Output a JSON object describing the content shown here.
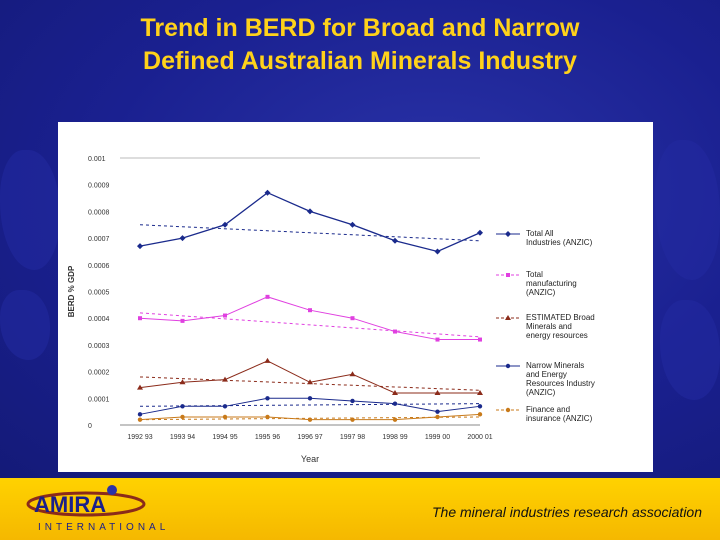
{
  "slide": {
    "title_line1": "Trend in BERD for Broad and Narrow",
    "title_line2": "Defined Australian Minerals Industry"
  },
  "footer": {
    "tagline": "The mineral industries research association",
    "logo_text": "AMIRA",
    "logo_subtext": "INTERNATIONAL"
  },
  "chart_data": {
    "type": "line",
    "ylabel": "BERD % GDP",
    "xlabel": "Year",
    "ylim": [
      0,
      0.001
    ],
    "yticks": [
      "0.001",
      "0.0009",
      "0.0008",
      "0.0007",
      "0.0006",
      "0.0005",
      "0.0004",
      "0.0003",
      "0.0002",
      "0.0001",
      "0"
    ],
    "ytick_values": [
      0.001,
      0.0009,
      0.0008,
      0.0007,
      0.0006,
      0.0005,
      0.0004,
      0.0003,
      0.0002,
      0.0001,
      0
    ],
    "categories": [
      "1992 93",
      "1993 94",
      "1994 95",
      "1995 96",
      "1996 97",
      "1997 98",
      "1998 99",
      "1999 00",
      "2000 01"
    ],
    "series": [
      {
        "name": "Total All Industries (ANZIC)",
        "color": "#1a2a8c",
        "marker": "diamond",
        "values": [
          0.00067,
          0.0007,
          0.00075,
          0.00087,
          0.0008,
          0.00075,
          0.00069,
          0.00065,
          0.00072
        ],
        "trend": [
          0.00075,
          0.00069
        ]
      },
      {
        "name": "Total manufacturing (ANZIC)",
        "color": "#e040e0",
        "marker": "square",
        "values": [
          0.0004,
          0.00039,
          0.00041,
          0.00048,
          0.00043,
          0.0004,
          0.00035,
          0.00032,
          0.00032
        ],
        "trend": [
          0.00042,
          0.00033
        ]
      },
      {
        "name": "ESTIMATED Broad Minerals and energy resources",
        "color": "#8b2b1a",
        "marker": "triangle",
        "values": [
          0.00014,
          0.00016,
          0.00017,
          0.00024,
          0.00016,
          0.00019,
          0.00012,
          0.00012,
          0.00012
        ],
        "trend": [
          0.00018,
          0.00013
        ]
      },
      {
        "name": "Narrow Minerals and Energy Resources Industry (ANZIC)",
        "color": "#1a2a8c",
        "marker": "circle",
        "values": [
          4e-05,
          7e-05,
          7e-05,
          0.0001,
          0.0001,
          9e-05,
          8e-05,
          5e-05,
          7e-05
        ],
        "trend": [
          7e-05,
          8e-05
        ]
      },
      {
        "name": "Finance and insurance (ANZIC)",
        "color": "#c87a1a",
        "marker": "circle",
        "values": [
          2e-05,
          3e-05,
          3e-05,
          3e-05,
          2e-05,
          2e-05,
          2e-05,
          3e-05,
          4e-05
        ],
        "trend": [
          2e-05,
          3e-05
        ]
      }
    ],
    "legend_position": "right",
    "grid": false
  }
}
